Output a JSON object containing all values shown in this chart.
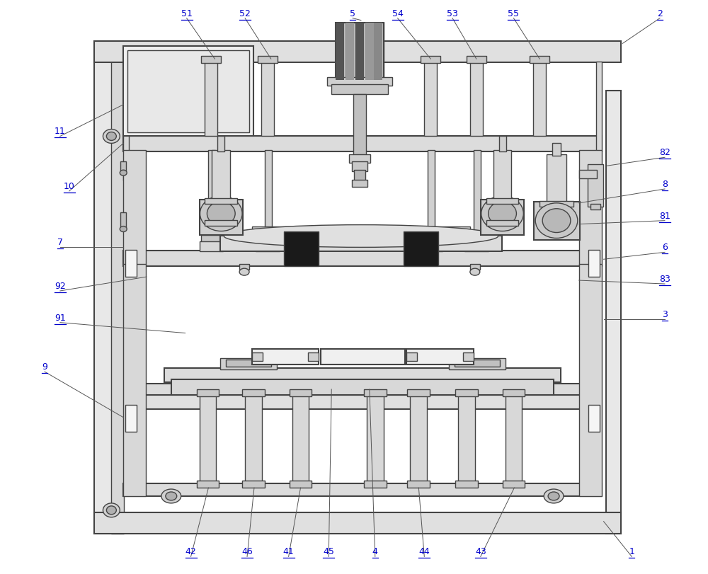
{
  "bg_color": "#ffffff",
  "lc": "#444444",
  "figsize": [
    10.0,
    8.11
  ],
  "dpi": 100,
  "label_color": "#0000cc",
  "leader_color": "#555555"
}
